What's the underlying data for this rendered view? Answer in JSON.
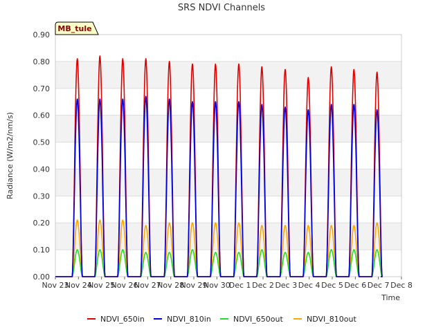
{
  "chart_data": {
    "type": "line",
    "title": "SRS NDVI Channels",
    "xlabel": "Time",
    "ylabel": "Radiance (W/m2/nm/s)",
    "ylim": [
      0,
      0.9
    ],
    "yticks": [
      "0.00",
      "0.10",
      "0.20",
      "0.30",
      "0.40",
      "0.50",
      "0.60",
      "0.70",
      "0.80",
      "0.90"
    ],
    "xlim": [
      0,
      15
    ],
    "xticks": [
      "Nov 23",
      "Nov 24",
      "Nov 25",
      "Nov 26",
      "Nov 27",
      "Nov 28",
      "Nov 29",
      "Nov 30",
      "Dec 1",
      "Dec 2",
      "Dec 3",
      "Dec 4",
      "Dec 5",
      "Dec 6",
      "Dec 7",
      "Dec 8"
    ],
    "grid": "horizontal bands",
    "legend_position": "bottom",
    "annotation": "MB_tule",
    "day_peak_x": [
      0.95,
      1.93,
      2.92,
      3.92,
      4.94,
      5.94,
      6.94,
      7.95,
      8.95,
      9.96,
      10.96,
      11.96,
      12.94,
      13.94
    ],
    "series": [
      {
        "name": "NDVI_650in",
        "color": "#e00000",
        "peaks": [
          0.81,
          0.82,
          0.81,
          0.81,
          0.8,
          0.79,
          0.79,
          0.79,
          0.78,
          0.77,
          0.74,
          0.78,
          0.77,
          0.76
        ]
      },
      {
        "name": "NDVI_810in",
        "color": "#0000dd",
        "peaks": [
          0.66,
          0.66,
          0.66,
          0.67,
          0.66,
          0.65,
          0.65,
          0.65,
          0.64,
          0.63,
          0.62,
          0.64,
          0.64,
          0.62
        ]
      },
      {
        "name": "NDVI_650out",
        "color": "#22dd22",
        "peaks": [
          0.1,
          0.1,
          0.1,
          0.09,
          0.09,
          0.1,
          0.09,
          0.09,
          0.1,
          0.09,
          0.09,
          0.1,
          0.1,
          0.1
        ]
      },
      {
        "name": "NDVI_810out",
        "color": "#ffa500",
        "peaks": [
          0.21,
          0.21,
          0.21,
          0.19,
          0.2,
          0.2,
          0.2,
          0.2,
          0.19,
          0.19,
          0.19,
          0.19,
          0.19,
          0.2
        ]
      }
    ]
  }
}
